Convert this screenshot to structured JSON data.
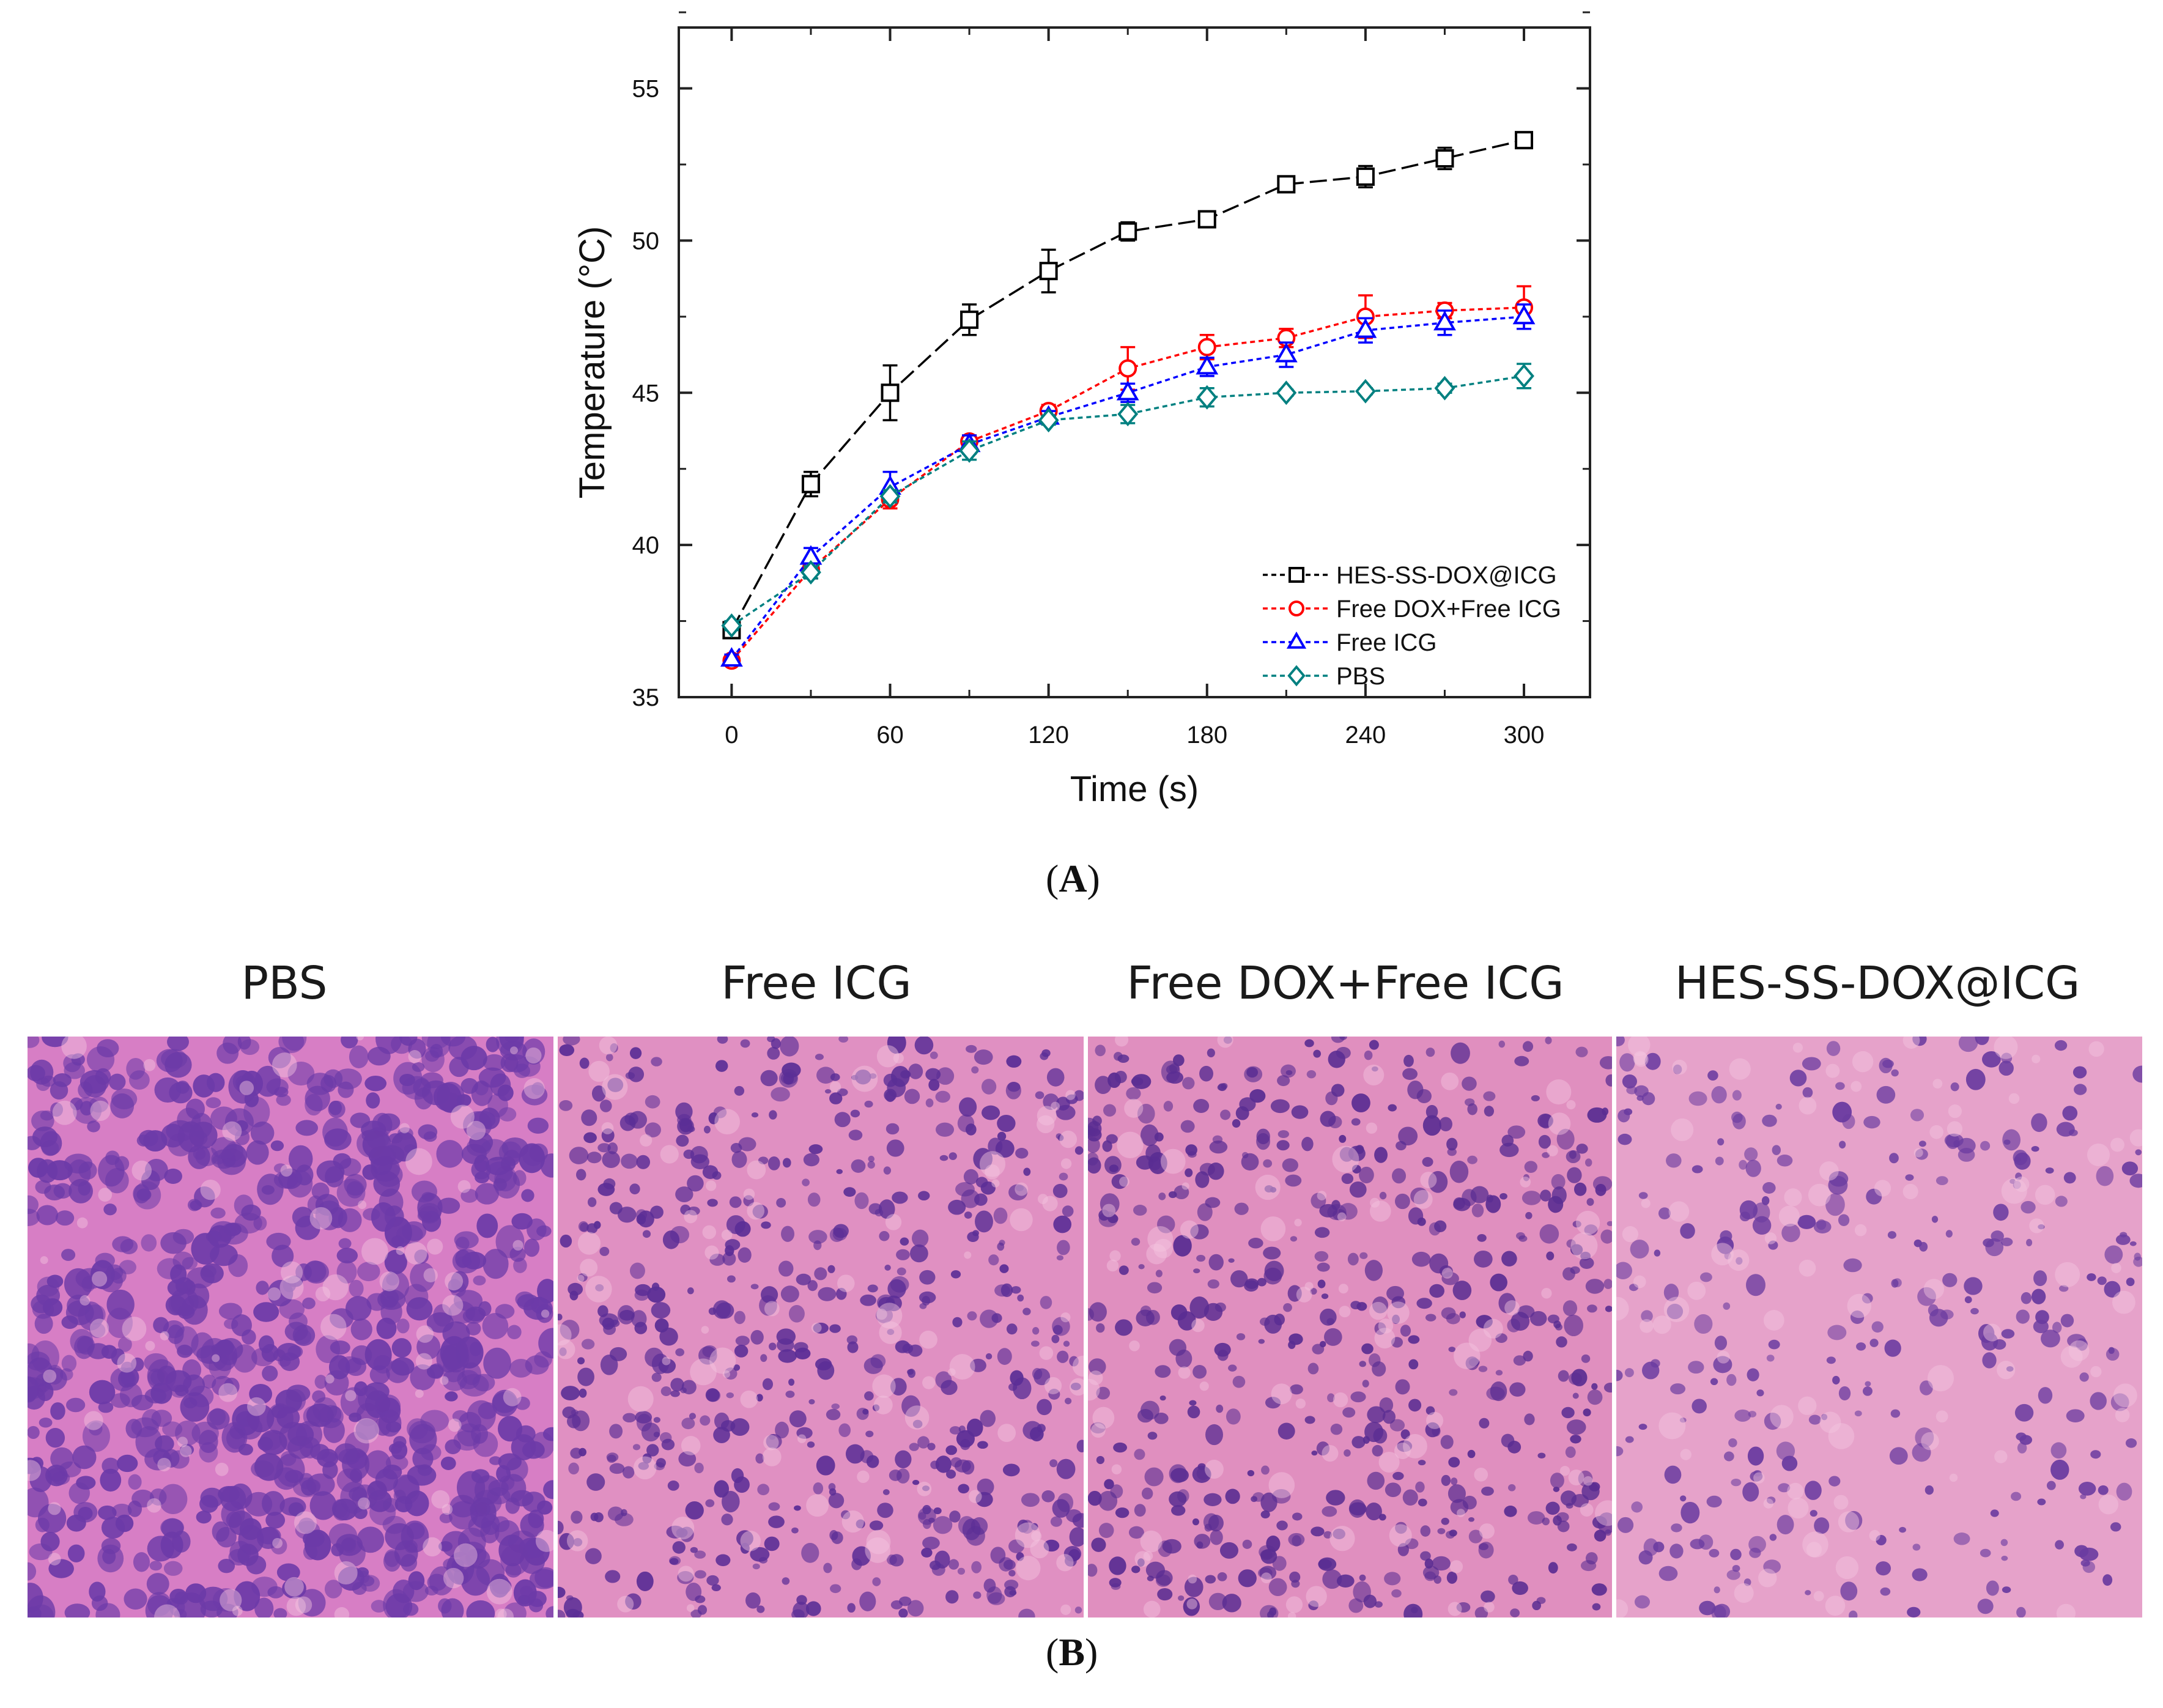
{
  "panel_a_label": "A",
  "panel_b_label": "B",
  "chart_data": {
    "type": "line",
    "xlabel": "Time (s)",
    "ylabel": "Temperature (°C)",
    "xlim": [
      -20,
      325
    ],
    "ylim": [
      35,
      57
    ],
    "xticks": [
      0,
      60,
      120,
      180,
      240,
      300
    ],
    "yticks": [
      35,
      40,
      45,
      50,
      55
    ],
    "grid": false,
    "legend_position": "bottom-right",
    "x": [
      0,
      30,
      60,
      90,
      120,
      150,
      180,
      210,
      240,
      270,
      300
    ],
    "series": [
      {
        "name": "HES-SS-DOX@ICG",
        "color": "#000000",
        "marker": "square",
        "dash": "28 10",
        "values": [
          37.2,
          42.0,
          45.0,
          47.4,
          49.0,
          50.3,
          50.7,
          51.85,
          52.1,
          52.7,
          53.3
        ],
        "errors": [
          0.2,
          0.4,
          0.9,
          0.5,
          0.7,
          0.3,
          0.2,
          0.2,
          0.35,
          0.35,
          0.25
        ]
      },
      {
        "name": "Free DOX+Free ICG",
        "color": "#ff0000",
        "marker": "circle",
        "dash": "8 6",
        "values": [
          36.2,
          39.2,
          41.5,
          43.4,
          44.4,
          45.8,
          46.5,
          46.8,
          47.5,
          47.7,
          47.8
        ],
        "errors": [
          0.15,
          0.3,
          0.3,
          0.2,
          0.2,
          0.7,
          0.4,
          0.3,
          0.7,
          0.25,
          0.7
        ]
      },
      {
        "name": "Free ICG",
        "color": "#0000ff",
        "marker": "triangle",
        "dash": "8 6",
        "values": [
          36.25,
          39.6,
          41.9,
          43.3,
          44.2,
          45.0,
          45.85,
          46.25,
          47.05,
          47.3,
          47.5
        ],
        "errors": [
          0.15,
          0.3,
          0.5,
          0.3,
          0.2,
          0.3,
          0.3,
          0.4,
          0.4,
          0.4,
          0.4
        ]
      },
      {
        "name": "PBS",
        "color": "#008080",
        "marker": "diamond",
        "dash": "8 6",
        "values": [
          37.35,
          39.1,
          41.6,
          43.1,
          44.1,
          44.3,
          44.85,
          45.0,
          45.05,
          45.15,
          45.55
        ],
        "errors": [
          0.15,
          0.2,
          0.2,
          0.3,
          0.15,
          0.3,
          0.3,
          0.1,
          0.1,
          0.15,
          0.4
        ]
      }
    ]
  },
  "histology": {
    "panels": [
      {
        "title": "PBS",
        "bg": "#d77ec5",
        "cell": "#6c3aa8",
        "density": 0.62,
        "cell_size": "large"
      },
      {
        "title": "Free ICG",
        "bg": "#e090c2",
        "cell": "#5b2e96",
        "density": 0.42,
        "cell_size": "small"
      },
      {
        "title": "Free DOX+Free ICG",
        "bg": "#e08fbf",
        "cell": "#5a2d92",
        "density": 0.4,
        "cell_size": "small"
      },
      {
        "title": "HES-SS-DOX@ICG",
        "bg": "#e6a2ca",
        "cell": "#6a3ba0",
        "density": 0.22,
        "cell_size": "small"
      }
    ]
  }
}
